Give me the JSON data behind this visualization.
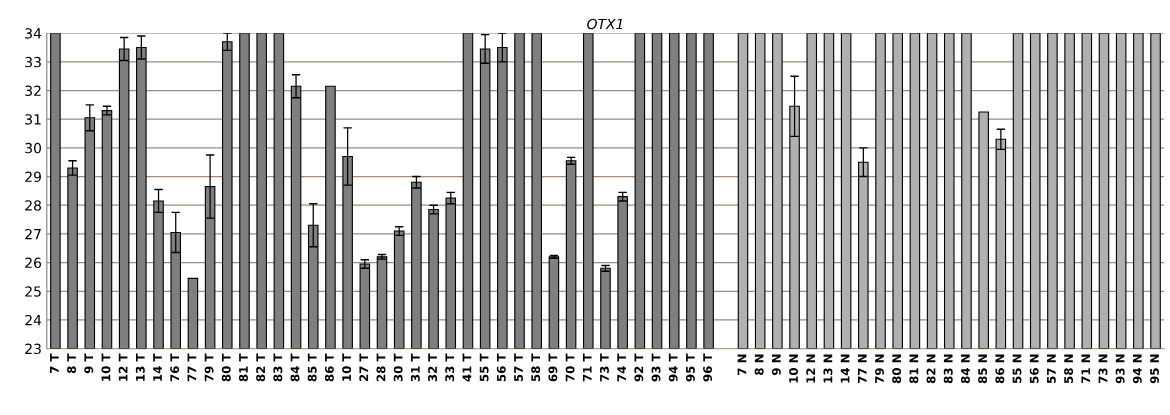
{
  "chart_data": {
    "type": "bar",
    "title": "OTX1",
    "categories": [
      "7 T",
      "8 T",
      "9 T",
      "10 T",
      "12 T",
      "13 T",
      "14 T",
      "76 T",
      "77 T",
      "79 T",
      "80 T",
      "81 T",
      "82 T",
      "83 T",
      "84 T",
      "85 T",
      "86 T",
      "10 T",
      "27 T",
      "28 T",
      "30 T",
      "31 T",
      "32 T",
      "33 T",
      "41 T",
      "55 T",
      "56 T",
      "57 T",
      "58 T",
      "69 T",
      "70 T",
      "71 T",
      "73 T",
      "74 T",
      "92 T",
      "93 T",
      "94 T",
      "95 T",
      "96 T",
      null,
      "7 N",
      "8 N",
      "9 N",
      "10 N",
      "12 N",
      "13 N",
      "14 N",
      "77 N",
      "79 N",
      "80 N",
      "81 N",
      "82 N",
      "83 N",
      "84 N",
      "85 N",
      "86 N",
      "55 N",
      "56 N",
      "57 N",
      "58 N",
      "71 N",
      "73 N",
      "93 N",
      "94 N",
      "95 N"
    ],
    "values": [
      34,
      29.3,
      31.05,
      31.3,
      33.45,
      33.5,
      28.15,
      27.05,
      25.45,
      28.65,
      33.7,
      34,
      34,
      34,
      32.15,
      27.3,
      32.15,
      29.7,
      25.95,
      26.2,
      27.1,
      28.8,
      27.85,
      28.25,
      34,
      33.45,
      33.5,
      34,
      34,
      26.2,
      29.55,
      34,
      25.8,
      28.3,
      34,
      34,
      34,
      34,
      34,
      null,
      34,
      34,
      34,
      31.45,
      34,
      34,
      34,
      29.5,
      34,
      34,
      34,
      34,
      34,
      34,
      31.25,
      30.3,
      34,
      34,
      34,
      34,
      34,
      34,
      34,
      34,
      34
    ],
    "errors": [
      null,
      0.25,
      0.45,
      0.15,
      0.4,
      0.4,
      0.4,
      0.7,
      null,
      1.1,
      0.3,
      null,
      null,
      null,
      0.4,
      0.75,
      null,
      1.0,
      0.15,
      0.08,
      0.15,
      0.2,
      0.15,
      0.2,
      null,
      0.5,
      0.5,
      null,
      null,
      0.05,
      0.12,
      null,
      0.1,
      0.15,
      null,
      null,
      null,
      null,
      null,
      null,
      null,
      null,
      null,
      1.05,
      null,
      null,
      null,
      0.5,
      null,
      null,
      null,
      null,
      null,
      null,
      null,
      0.35,
      null,
      null,
      null,
      null,
      null,
      null,
      null,
      null,
      null
    ],
    "colors": [
      "#7f7f7f",
      "#7f7f7f",
      "#7f7f7f",
      "#7f7f7f",
      "#7f7f7f",
      "#7f7f7f",
      "#7f7f7f",
      "#7f7f7f",
      "#7f7f7f",
      "#7f7f7f",
      "#7f7f7f",
      "#7f7f7f",
      "#7f7f7f",
      "#7f7f7f",
      "#7f7f7f",
      "#7f7f7f",
      "#7f7f7f",
      "#7f7f7f",
      "#7f7f7f",
      "#7f7f7f",
      "#7f7f7f",
      "#7f7f7f",
      "#7f7f7f",
      "#7f7f7f",
      "#7f7f7f",
      "#7f7f7f",
      "#7f7f7f",
      "#7f7f7f",
      "#7f7f7f",
      "#7f7f7f",
      "#7f7f7f",
      "#7f7f7f",
      "#7f7f7f",
      "#7f7f7f",
      "#7f7f7f",
      "#7f7f7f",
      "#7f7f7f",
      "#7f7f7f",
      "#7f7f7f",
      "#ffffff",
      "#b0b0b0",
      "#b0b0b0",
      "#b0b0b0",
      "#b0b0b0",
      "#b0b0b0",
      "#b0b0b0",
      "#b0b0b0",
      "#b0b0b0",
      "#b0b0b0",
      "#b0b0b0",
      "#b0b0b0",
      "#b0b0b0",
      "#b0b0b0",
      "#b0b0b0",
      "#b0b0b0",
      "#b0b0b0",
      "#b0b0b0",
      "#b0b0b0",
      "#b0b0b0",
      "#b0b0b0",
      "#b0b0b0",
      "#b0b0b0",
      "#b0b0b0",
      "#b0b0b0",
      "#b0b0b0"
    ],
    "ylim": [
      23,
      34
    ],
    "yticks": [
      23,
      24,
      25,
      26,
      27,
      28,
      29,
      30,
      31,
      32,
      33,
      34
    ],
    "grid": "y"
  }
}
